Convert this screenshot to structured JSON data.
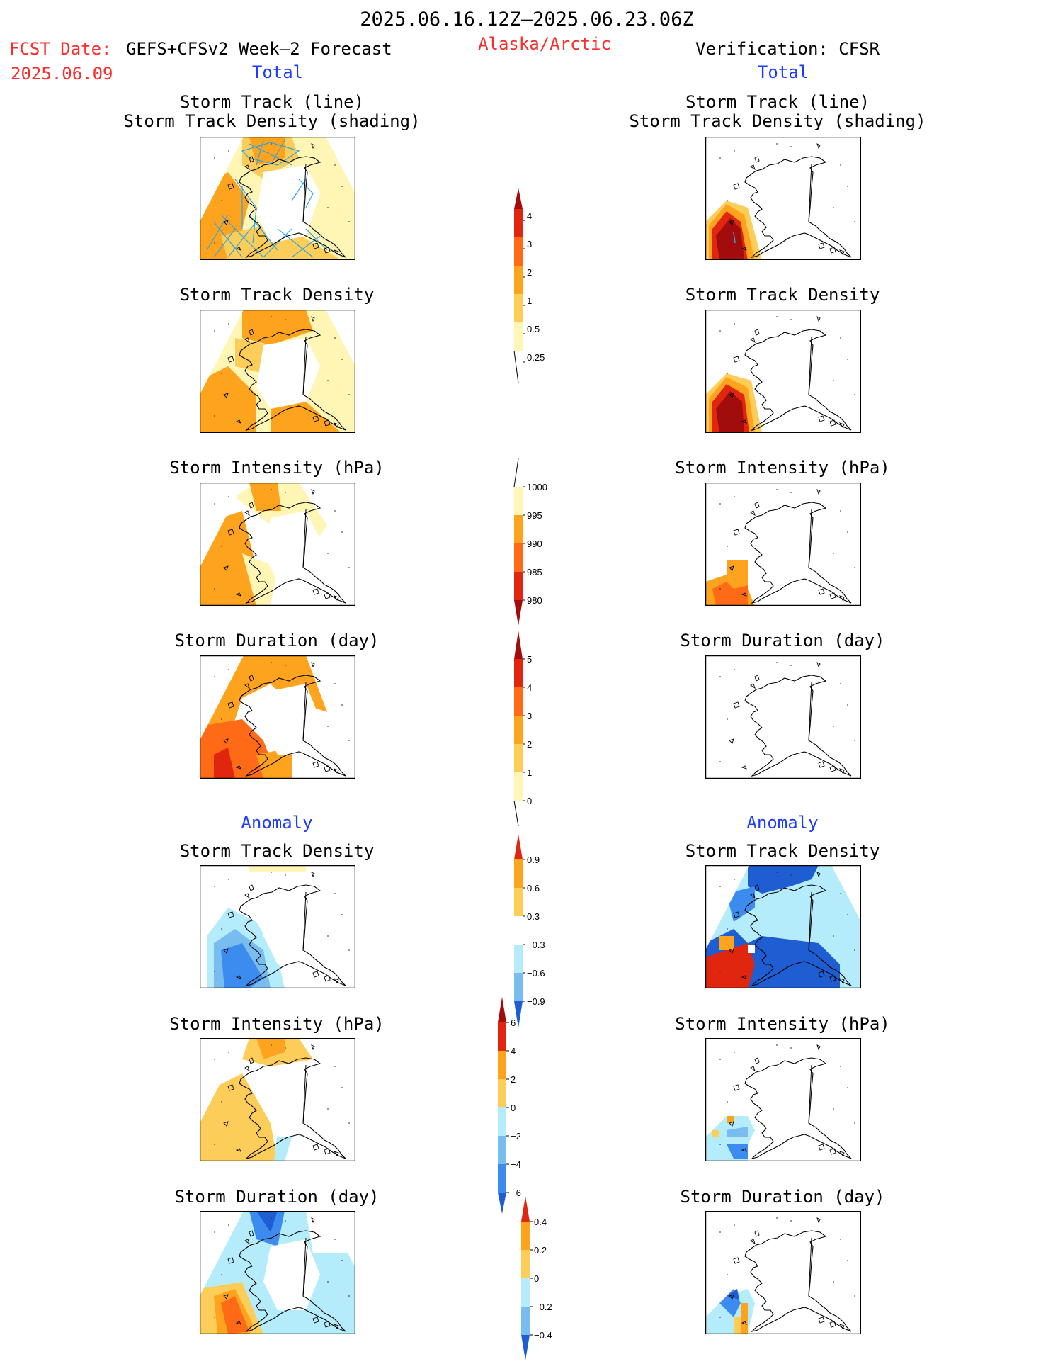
{
  "header": {
    "period": "2025.06.16.12Z–2025.06.23.06Z",
    "fcst_label": "FCST Date:",
    "fcst_model": "GEFS+CFSv2 Week–2 Forecast",
    "fcst_date": "2025.06.09",
    "region": "Alaska/Arctic",
    "verification": "Verification: CFSR"
  },
  "sections": {
    "total_left": "Total",
    "total_right": "Total",
    "anomaly_left": "Anomaly",
    "anomaly_right": "Anomaly"
  },
  "panels": {
    "track_line": "Storm Track (line)",
    "track_shading": "Storm Track Density (shading)",
    "density": "Storm Track Density",
    "intensity": "Storm Intensity (hPa)",
    "duration": "Storm Duration (day)"
  },
  "colorbars": {
    "density_total": [
      "0.25",
      "0.5",
      "1",
      "2",
      "3",
      "4"
    ],
    "intensity_total": [
      "1000",
      "995",
      "990",
      "985",
      "980"
    ],
    "duration_total": [
      "0",
      "1",
      "2",
      "3",
      "4",
      "5"
    ],
    "density_anom": [
      "0.9",
      "0.6",
      "0.3",
      "−0.3",
      "−0.6",
      "−0.9"
    ],
    "intensity_anom": [
      "6",
      "4",
      "2",
      "0",
      "−2",
      "−4",
      "−6"
    ],
    "duration_anom": [
      "0.4",
      "0.2",
      "0",
      "−0.2",
      "−0.4"
    ]
  },
  "colors": {
    "pale_yellow": "#fff5b4",
    "light_orange": "#fdcd5a",
    "orange": "#fea31e",
    "dark_orange": "#fe6a16",
    "red": "#e0260e",
    "dark_red": "#a30c0c",
    "light_blue": "#b4ecfb",
    "mid_blue": "#78bcf0",
    "blue": "#3c8cf0",
    "dark_blue": "#1f5ed2",
    "track_line": "#2aa5e6",
    "heading_red": "#ff2a2a",
    "heading_blue": "#1e3cff"
  }
}
